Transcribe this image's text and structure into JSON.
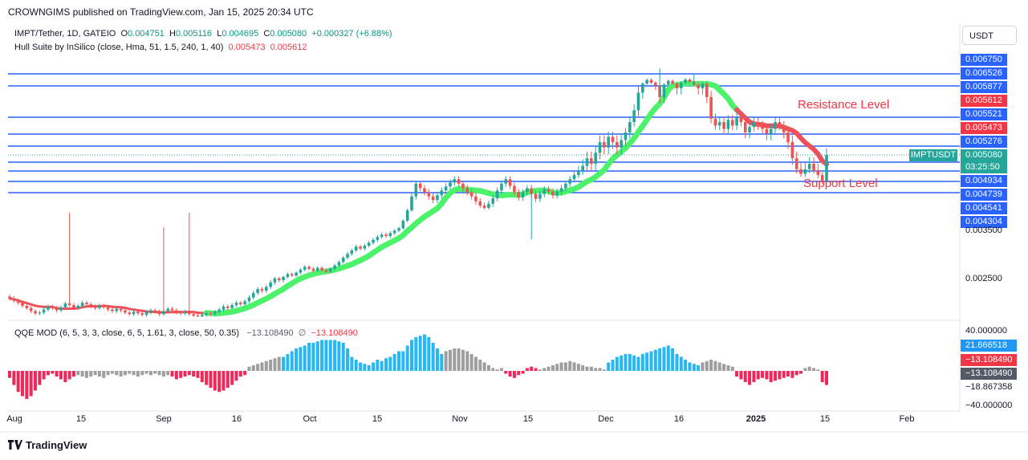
{
  "header": {
    "published": "CROWNGIMS published on TradingView.com, Jan 15, 2025 20:34 UTC"
  },
  "legend": {
    "symbol": "IMPT/Tether, 1D, GATEIO",
    "o_label": "O",
    "o_value": "0.004751",
    "h_label": "H",
    "h_value": "0.005116",
    "l_label": "L",
    "l_value": "0.004695",
    "c_label": "C",
    "c_value": "0.005080",
    "change": "+0.000327 (+6.88%)",
    "indicator": "Hull Suite by InSilico (close, Hma, 51, 1.5, 240, 1, 40)",
    "ind_val1": "0.005473",
    "ind_val2": "0.005612",
    "qqe": "QQE MOD (6, 5, 3, 3, close, 6, 5, 1.61, 3, close, 50, 0.35)",
    "qqe_val1": "−13.108490",
    "qqe_sym": "∅",
    "qqe_val2": "−13.108490"
  },
  "currency": "USDT",
  "symbol_tag": "IMPTUSDT",
  "countdown": "03:25:50",
  "annotations": {
    "resistance": "Resistance Level",
    "support": "Support Level"
  },
  "footer": {
    "brand": "TradingView"
  },
  "colors": {
    "up": "#26a69a",
    "down": "#ef5350",
    "line": "#2962ff",
    "hull_up": "#4cf26a",
    "hull_down": "#f0505a",
    "qqe_up": "#27b8f4",
    "qqe_down": "#f2275a",
    "qqe_neutral": "#9e9e9e"
  },
  "chart_data": [
    {
      "type": "candlestick",
      "title": "IMPT/Tether, 1D, GATEIO",
      "ylim": [
        0.002,
        0.007
      ],
      "y_ticks": [
        "0.003500",
        "0.002500"
      ],
      "horizontal_levels": [
        {
          "value": 0.006526,
          "label": "0.006526"
        },
        {
          "value": 0.005877,
          "label": "0.005877"
        },
        {
          "value": 0.005521,
          "label": "0.005521"
        },
        {
          "value": 0.005276,
          "label": "0.005276"
        },
        {
          "value": 0.004934,
          "label": "0.004934"
        },
        {
          "value": 0.004739,
          "label": "0.004739"
        },
        {
          "value": 0.004541,
          "label": "0.004541"
        },
        {
          "value": 0.004304,
          "label": "0.004304"
        }
      ],
      "price_tags": [
        {
          "value": 0.00675,
          "label": "0.006750",
          "color": "#2962ff"
        },
        {
          "value": 0.005612,
          "label": "0.005612",
          "color": "#f23645"
        },
        {
          "value": 0.005473,
          "label": "0.005473",
          "color": "#f23645"
        },
        {
          "value": 0.00508,
          "label": "0.005080",
          "color": "#2962ff"
        }
      ],
      "x_labels": [
        "Aug",
        "15",
        "Sep",
        "16",
        "Oct",
        "15",
        "Nov",
        "15",
        "Dec",
        "16",
        "2025",
        "15",
        "Feb"
      ],
      "closes": [
        0.00225,
        0.00222,
        0.00219,
        0.00215,
        0.00212,
        0.00208,
        0.00205,
        0.00206,
        0.0021,
        0.00214,
        0.00212,
        0.00209,
        0.00213,
        0.00218,
        0.00216,
        0.00212,
        0.00215,
        0.00219,
        0.00217,
        0.00214,
        0.00212,
        0.00215,
        0.00213,
        0.0021,
        0.00208,
        0.00211,
        0.00209,
        0.00206,
        0.00204,
        0.00207,
        0.00205,
        0.00203,
        0.00206,
        0.00209,
        0.00207,
        0.00204,
        0.00208,
        0.00211,
        0.00209,
        0.00206,
        0.00205,
        0.00207,
        0.00204,
        0.00202,
        0.00201,
        0.00203,
        0.00205,
        0.00204,
        0.00207,
        0.0021,
        0.00214,
        0.00212,
        0.00216,
        0.00219,
        0.00217,
        0.00221,
        0.00226,
        0.00232,
        0.00237,
        0.00235,
        0.0024,
        0.00246,
        0.00252,
        0.00249,
        0.00255,
        0.00261,
        0.00258,
        0.00264,
        0.0027,
        0.00276,
        0.00272,
        0.00268,
        0.00274,
        0.00269,
        0.00266,
        0.00272,
        0.00279,
        0.00286,
        0.00295,
        0.00303,
        0.0031,
        0.00318,
        0.00314,
        0.0032,
        0.00326,
        0.00332,
        0.00338,
        0.00343,
        0.0034,
        0.00346,
        0.00352,
        0.0036,
        0.00385,
        0.0042,
        0.00448,
        0.0047,
        0.00462,
        0.00455,
        0.00448,
        0.00442,
        0.0045,
        0.00458,
        0.00465,
        0.00472,
        0.00478,
        0.0047,
        0.00462,
        0.00455,
        0.00448,
        0.0044,
        0.00433,
        0.00428,
        0.00436,
        0.00445,
        0.00458,
        0.0047,
        0.00478,
        0.00466,
        0.00455,
        0.00446,
        0.00455,
        0.00462,
        0.00452,
        0.00444,
        0.00452,
        0.0046,
        0.00456,
        0.0045,
        0.00456,
        0.00462,
        0.0047,
        0.00478,
        0.00486,
        0.00492,
        0.00498,
        0.00505,
        0.005,
        0.0051,
        0.0052,
        0.00515,
        0.00525,
        0.0052,
        0.00515,
        0.00522,
        0.0053,
        0.00545,
        0.0056,
        0.0058,
        0.006,
        0.0062,
        0.00605,
        0.0059,
        0.00575,
        0.00595,
        0.00615,
        0.006,
        0.00585,
        0.00605,
        0.00622,
        0.0061,
        0.00595,
        0.00585,
        0.006,
        0.00575,
        0.0055,
        0.0054,
        0.00545,
        0.00535,
        0.00548,
        0.0054,
        0.00552,
        0.00545,
        0.0053,
        0.00538,
        0.00545,
        0.0054,
        0.00535,
        0.00528,
        0.00535,
        0.00545,
        0.0054,
        0.0053,
        0.0052,
        0.00505,
        0.00495,
        0.00488,
        0.00495,
        0.005,
        0.00494,
        0.00486,
        0.00475,
        0.00508
      ]
    },
    {
      "type": "bar",
      "title": "QQE MOD (6, 5, 3, 3, close, 6, 5, 1.61, 3, close, 50, 0.35)",
      "ylim": [
        -40,
        40
      ],
      "y_ticks": [
        "40.000000",
        "−18.867358",
        "−40.000000"
      ],
      "value_tags": [
        {
          "value": 21.666518,
          "label": "21.666518",
          "color": "#2196f3"
        },
        {
          "value": -13.10849,
          "label": "−13.108490",
          "color": "#f23645"
        },
        {
          "value": -13.10849,
          "label": "−13.108490",
          "color": "#555b66"
        }
      ],
      "segments": [
        {
          "from": 0,
          "to": 16,
          "values": [
            -5,
            -10,
            -15,
            -18,
            -20,
            -18,
            -14,
            -10,
            -6,
            -3,
            -2,
            -4,
            -6,
            -8,
            -6,
            -4
          ],
          "color": "qqe_down"
        },
        {
          "from": 16,
          "to": 38,
          "values": [
            -3,
            -4,
            -5,
            -4,
            -3,
            -4,
            -5,
            -3,
            -2,
            -3,
            -4,
            -3,
            -2,
            -3,
            -4,
            -3,
            -2,
            -3,
            -2,
            -3,
            -4,
            -3
          ],
          "color": "qqe_neutral"
        },
        {
          "from": 38,
          "to": 56,
          "values": [
            -4,
            -6,
            -5,
            -4,
            -3,
            -4,
            -5,
            -8,
            -10,
            -12,
            -14,
            -15,
            -14,
            -12,
            -10,
            -7,
            -4,
            -3
          ],
          "color": "qqe_down"
        },
        {
          "from": 56,
          "to": 64,
          "values": [
            3,
            4,
            5,
            6,
            7,
            8,
            9,
            10
          ],
          "color": "qqe_neutral"
        },
        {
          "from": 64,
          "to": 92,
          "values": [
            10,
            12,
            14,
            16,
            17,
            18,
            20,
            20,
            21,
            22,
            22,
            22,
            22,
            21,
            20,
            16,
            10,
            8,
            6,
            5,
            4,
            6,
            8,
            7,
            9,
            10,
            12,
            14
          ],
          "color": "qqe_up"
        },
        {
          "from": 92,
          "to": 102,
          "values": [
            14,
            18,
            22,
            24,
            25,
            26,
            24,
            20,
            16,
            12
          ],
          "color": "qqe_up"
        },
        {
          "from": 102,
          "to": 116,
          "values": [
            14,
            15,
            16,
            16,
            15,
            14,
            12,
            10,
            8,
            6,
            4,
            2,
            1,
            2
          ],
          "color": "qqe_neutral"
        },
        {
          "from": 116,
          "to": 124,
          "values": [
            -2,
            -4,
            -5,
            -3,
            -2,
            2,
            3,
            2
          ],
          "color": "qqe_down"
        },
        {
          "from": 124,
          "to": 140,
          "values": [
            1,
            2,
            3,
            4,
            5,
            6,
            6,
            7,
            6,
            5,
            4,
            3,
            3,
            2,
            2,
            1
          ],
          "color": "qqe_neutral"
        },
        {
          "from": 140,
          "to": 162,
          "values": [
            6,
            8,
            10,
            11,
            12,
            12,
            11,
            10,
            12,
            13,
            14,
            15,
            16,
            17,
            18,
            16,
            12,
            10,
            8,
            6,
            5,
            4
          ],
          "color": "qqe_up"
        },
        {
          "from": 162,
          "to": 170,
          "values": [
            6,
            7,
            8,
            7,
            6,
            5,
            4,
            3
          ],
          "color": "qqe_neutral"
        },
        {
          "from": 170,
          "to": 186,
          "values": [
            -4,
            -6,
            -8,
            -10,
            -8,
            -6,
            -5,
            -6,
            -8,
            -7,
            -6,
            -5,
            -4,
            -5,
            -3,
            -2
          ],
          "color": "qqe_down"
        },
        {
          "from": 186,
          "to": 190,
          "values": [
            2,
            3,
            2,
            1
          ],
          "color": "qqe_neutral"
        },
        {
          "from": 190,
          "to": 200,
          "values": [
            -8,
            -10,
            -12,
            -14,
            -13,
            -12,
            -10,
            -12,
            -14,
            -13
          ],
          "color": "qqe_down"
        }
      ]
    }
  ]
}
